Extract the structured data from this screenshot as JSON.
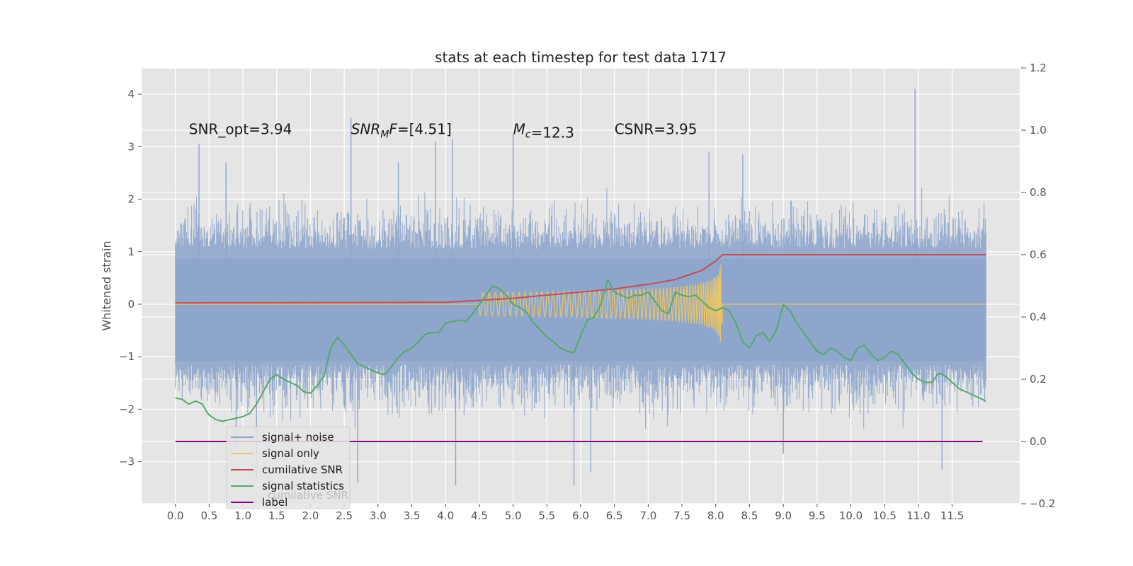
{
  "chart_data": {
    "type": "line",
    "title": "stats at each timestep for test data 1717",
    "ylabel": "Whitened strain",
    "xlim": [
      -0.5,
      12.5
    ],
    "ylim": [
      -3.8,
      4.5
    ],
    "y2lim": [
      -0.2,
      1.2
    ],
    "grid": true,
    "legend_position": "lower-left",
    "x_ticks": [
      "0.0",
      "0.5",
      "1.0",
      "1.5",
      "2.0",
      "2.5",
      "3.0",
      "3.5",
      "4.0",
      "4.5",
      "5.0",
      "5.5",
      "6.0",
      "6.5",
      "7.0",
      "7.5",
      "8.0",
      "8.5",
      "9.0",
      "9.5",
      "10.0",
      "10.5",
      "11.0",
      "11.5"
    ],
    "y_ticks": [
      "4",
      "3",
      "2",
      "1",
      "0",
      "−1",
      "−2",
      "−3"
    ],
    "y2_ticks": [
      "1.2",
      "1.0",
      "0.8",
      "0.6",
      "0.4",
      "0.2",
      "0.0",
      "−0.2"
    ],
    "annotations": [
      {
        "label": "SNR_opt",
        "value": "=3.94",
        "x": 0.2,
        "y": 3.35
      },
      {
        "label": "SNR",
        "sub": "M",
        "suffix": "F",
        "value": "=[4.51]",
        "x": 2.6,
        "y": 3.35
      },
      {
        "label": "M",
        "sub": "c",
        "value": "=12.3",
        "x": 5.0,
        "y": 3.35
      },
      {
        "label": "CSNR",
        "value": "=3.95",
        "x": 6.5,
        "y": 3.35
      }
    ],
    "noise": {
      "t_start": 0.0,
      "t_end": 12.0,
      "env_lo": -1.5,
      "env_hi": 1.4,
      "peaks": [
        {
          "t": 0.35,
          "v": 3.05
        },
        {
          "t": 0.75,
          "v": 2.7
        },
        {
          "t": 0.9,
          "v": -2.8
        },
        {
          "t": 1.2,
          "v": -3.35
        },
        {
          "t": 2.6,
          "v": 3.55
        },
        {
          "t": 3.3,
          "v": 2.7
        },
        {
          "t": 3.85,
          "v": 3.1
        },
        {
          "t": 4.1,
          "v": 3.15
        },
        {
          "t": 4.15,
          "v": -3.45
        },
        {
          "t": 5.0,
          "v": 3.25
        },
        {
          "t": 5.9,
          "v": -3.45
        },
        {
          "t": 6.15,
          "v": -3.2
        },
        {
          "t": 8.4,
          "v": 2.85
        },
        {
          "t": 9.0,
          "v": -2.85
        },
        {
          "t": 10.95,
          "v": 4.1
        },
        {
          "t": 11.35,
          "v": -3.15
        },
        {
          "t": 2.7,
          "v": -3.4
        },
        {
          "t": 7.9,
          "v": 2.9
        }
      ]
    },
    "series": [
      {
        "name": "signal+ noise",
        "color": "#8ea5cb",
        "axis": "left"
      },
      {
        "name": "signal only",
        "color": "#e8c46a",
        "axis": "left",
        "chirp": {
          "t_start": 4.5,
          "t_merge": 8.1,
          "amp_max": 0.95
        }
      },
      {
        "name": "cumilative SNR",
        "color": "#c44e52",
        "axis": "right",
        "x": [
          0.0,
          4.0,
          5.0,
          6.0,
          6.5,
          7.0,
          7.4,
          7.8,
          8.0,
          8.05,
          8.1,
          12.0
        ],
        "values": [
          0.445,
          0.447,
          0.46,
          0.48,
          0.49,
          0.505,
          0.52,
          0.55,
          0.58,
          0.59,
          0.6,
          0.6
        ]
      },
      {
        "name": "signal statistics",
        "color": "#55a868",
        "axis": "right",
        "x": [
          0.0,
          0.1,
          0.2,
          0.3,
          0.4,
          0.45,
          0.5,
          0.6,
          0.7,
          0.8,
          0.9,
          1.0,
          1.1,
          1.2,
          1.3,
          1.4,
          1.5,
          1.6,
          1.7,
          1.8,
          1.9,
          2.0,
          2.1,
          2.2,
          2.3,
          2.4,
          2.5,
          2.6,
          2.7,
          2.8,
          2.9,
          3.0,
          3.1,
          3.2,
          3.3,
          3.4,
          3.5,
          3.6,
          3.7,
          3.8,
          3.9,
          4.0,
          4.1,
          4.2,
          4.3,
          4.4,
          4.5,
          4.6,
          4.7,
          4.8,
          4.9,
          5.0,
          5.1,
          5.2,
          5.3,
          5.4,
          5.5,
          5.6,
          5.7,
          5.8,
          5.9,
          6.0,
          6.1,
          6.2,
          6.3,
          6.4,
          6.5,
          6.6,
          6.7,
          6.8,
          6.9,
          7.0,
          7.1,
          7.2,
          7.3,
          7.4,
          7.5,
          7.6,
          7.7,
          7.8,
          7.9,
          8.0,
          8.1,
          8.2,
          8.3,
          8.4,
          8.5,
          8.6,
          8.7,
          8.8,
          8.9,
          9.0,
          9.1,
          9.2,
          9.3,
          9.4,
          9.5,
          9.6,
          9.7,
          9.8,
          9.9,
          10.0,
          10.1,
          10.2,
          10.3,
          10.4,
          10.5,
          10.6,
          10.7,
          10.8,
          10.9,
          11.0,
          11.1,
          11.2,
          11.3,
          11.4,
          11.5,
          11.6,
          11.7,
          11.8,
          11.9,
          12.0
        ],
        "values": [
          0.14,
          0.135,
          0.12,
          0.13,
          0.12,
          0.1,
          0.085,
          0.07,
          0.065,
          0.07,
          0.075,
          0.08,
          0.09,
          0.12,
          0.16,
          0.2,
          0.215,
          0.2,
          0.19,
          0.18,
          0.16,
          0.155,
          0.18,
          0.21,
          0.3,
          0.335,
          0.31,
          0.28,
          0.25,
          0.24,
          0.23,
          0.22,
          0.215,
          0.24,
          0.27,
          0.29,
          0.3,
          0.32,
          0.345,
          0.35,
          0.35,
          0.38,
          0.385,
          0.39,
          0.385,
          0.41,
          0.44,
          0.47,
          0.5,
          0.49,
          0.47,
          0.44,
          0.43,
          0.415,
          0.38,
          0.36,
          0.335,
          0.32,
          0.3,
          0.29,
          0.285,
          0.34,
          0.39,
          0.4,
          0.44,
          0.52,
          0.48,
          0.47,
          0.46,
          0.47,
          0.47,
          0.48,
          0.45,
          0.42,
          0.41,
          0.48,
          0.47,
          0.465,
          0.47,
          0.45,
          0.43,
          0.42,
          0.43,
          0.42,
          0.38,
          0.32,
          0.3,
          0.34,
          0.35,
          0.32,
          0.36,
          0.44,
          0.42,
          0.38,
          0.35,
          0.32,
          0.29,
          0.28,
          0.3,
          0.29,
          0.27,
          0.26,
          0.3,
          0.31,
          0.28,
          0.26,
          0.27,
          0.29,
          0.28,
          0.25,
          0.22,
          0.2,
          0.19,
          0.19,
          0.22,
          0.21,
          0.19,
          0.17,
          0.16,
          0.15,
          0.14,
          0.13
        ]
      },
      {
        "name": "label",
        "color": "#800080",
        "axis": "right",
        "x": [
          0.0,
          11.95
        ],
        "values": [
          0.0,
          0.0
        ]
      }
    ],
    "legend_overlap_text": "cumilative SNR"
  }
}
